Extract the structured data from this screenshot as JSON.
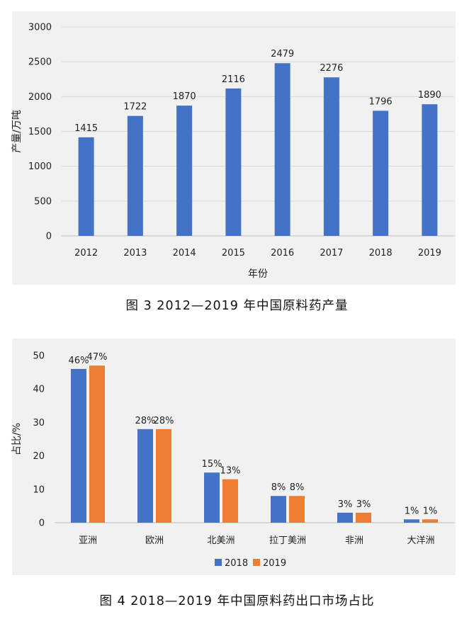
{
  "chart_data": [
    {
      "type": "bar",
      "xlabel": "年份",
      "ylabel": "产量/万吨",
      "ylim": [
        0,
        3000
      ],
      "yticks": [
        0,
        500,
        1000,
        1500,
        2000,
        2500,
        3000
      ],
      "categories": [
        "2012",
        "2013",
        "2014",
        "2015",
        "2016",
        "2017",
        "2018",
        "2019"
      ],
      "series": [
        {
          "values": [
            1415,
            1722,
            1870,
            2116,
            2479,
            2276,
            1796,
            1890
          ],
          "color": "#4472c4"
        }
      ],
      "grid": true,
      "caption": "图 3  2012—2019 年中国原料药产量"
    },
    {
      "type": "bar",
      "xlabel": "",
      "ylabel": "占比/%",
      "ylim": [
        0,
        50
      ],
      "yticks": [
        0,
        10,
        20,
        30,
        40,
        50
      ],
      "categories": [
        "亚洲",
        "欧洲",
        "北美洲",
        "拉丁美洲",
        "非洲",
        "大洋洲"
      ],
      "series": [
        {
          "name": "2018",
          "values": [
            46,
            28,
            15,
            8,
            3,
            1
          ],
          "labels": [
            "46%",
            "28%",
            "15%",
            "8%",
            "3%",
            "1%"
          ],
          "color": "#4472c4"
        },
        {
          "name": "2019",
          "values": [
            47,
            28,
            13,
            8,
            3,
            1
          ],
          "labels": [
            "47%",
            "28%",
            "13%",
            "8%",
            "3%",
            "1%"
          ],
          "color": "#ed7d31"
        }
      ],
      "legend": "bottom",
      "grid": false,
      "caption": "图 4  2018—2019 年中国原料药出口市场占比"
    }
  ]
}
